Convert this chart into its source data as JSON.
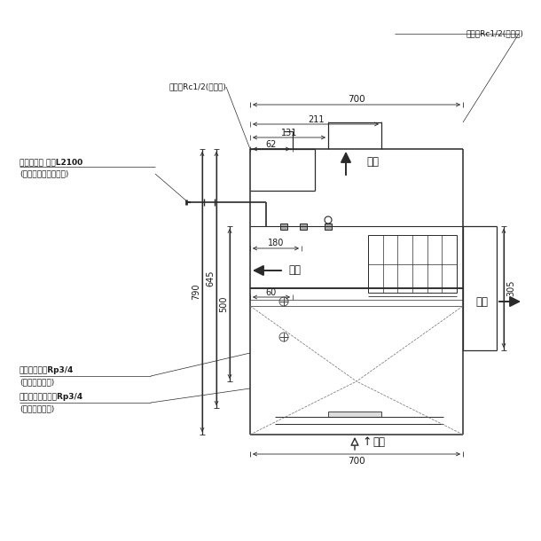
{
  "bg_color": "#ffffff",
  "line_color": "#2a2a2a",
  "text_color": "#1a1a1a",
  "fig_size": [
    6.1,
    6.1
  ],
  "dpi": 100,
  "labels": {
    "top_right_label": "給水口Rc1/2(冷却水)",
    "top_mid_label": "給水口Rc1/2(製氷水)",
    "elec_label1": "電源コード 機外L2100",
    "elec_label2": "(アース線付プラグ付)",
    "exhaust_top": "排気",
    "exhaust_left": "排気",
    "exhaust_right": "排気",
    "intake_bot": "吸気",
    "drain_label1": "過劉部排水口Rp3/4",
    "drain_label2": "(ストッカ底面)",
    "stocker_label1": "ストッカ内排水口Rp3/4",
    "stocker_label2": "(ストッカ底面)",
    "dim_700": "700",
    "dim_211": "211",
    "dim_131": "131",
    "dim_62": "62",
    "dim_790": "790",
    "dim_645": "645",
    "dim_500": "500",
    "dim_180": "180",
    "dim_60": "60",
    "dim_305": "305"
  }
}
